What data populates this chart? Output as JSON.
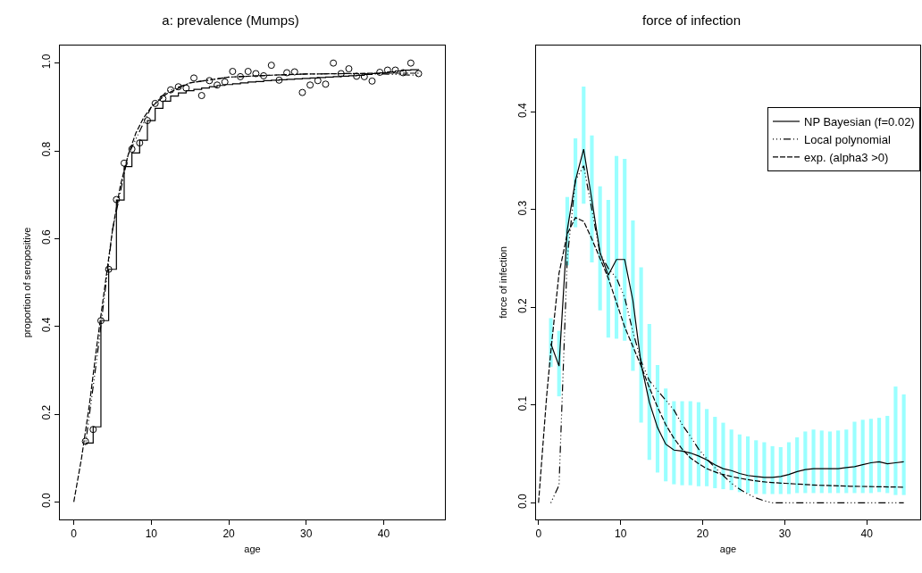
{
  "chart_data": [
    {
      "type": "scatter",
      "title": "a: prevalence (Mumps)",
      "xlabel": "age",
      "ylabel": "proportion of seropositive",
      "x": [
        1.5,
        2.5,
        3.5,
        4.5,
        5.5,
        6.5,
        7.5,
        8.5,
        9.5,
        10.5,
        11.5,
        12.5,
        13.5,
        14.5,
        15.5,
        16.5,
        17.5,
        18.5,
        19.5,
        20.5,
        21.5,
        22.5,
        23.5,
        24.5,
        25.5,
        26.5,
        27.5,
        28.5,
        29.5,
        30.5,
        31.5,
        32.5,
        33.5,
        34.5,
        35.5,
        36.5,
        37.5,
        38.5,
        39.5,
        40.5,
        41.5,
        42.5,
        43.5,
        44.5
      ],
      "series": [
        {
          "marker": "circle",
          "color": "#000000",
          "values": [
            0.138,
            0.165,
            0.413,
            0.53,
            0.689,
            0.772,
            0.804,
            0.818,
            0.869,
            0.908,
            0.919,
            0.939,
            0.946,
            0.943,
            0.966,
            0.926,
            0.96,
            0.95,
            0.957,
            0.981,
            0.969,
            0.981,
            0.976,
            0.971,
            0.995,
            0.961,
            0.978,
            0.98,
            0.933,
            0.95,
            0.96,
            0.952,
            1.0,
            0.976,
            0.987,
            0.97,
            0.969,
            0.959,
            0.979,
            0.984,
            0.984,
            0.978,
            1.0,
            0.976
          ]
        },
        {
          "type": "step",
          "line_style": "solid",
          "color": "#000000",
          "values": [
            0.134,
            0.171,
            0.413,
            0.53,
            0.688,
            0.764,
            0.795,
            0.824,
            0.869,
            0.897,
            0.913,
            0.925,
            0.932,
            0.937,
            0.94,
            0.943,
            0.946,
            0.949,
            0.951,
            0.953,
            0.955,
            0.957,
            0.958,
            0.96,
            0.961,
            0.962,
            0.963,
            0.964,
            0.965,
            0.966,
            0.967,
            0.968,
            0.969,
            0.97,
            0.971,
            0.972,
            0.974,
            0.976,
            0.978,
            0.98,
            0.982,
            0.984,
            0.985,
            0.986
          ]
        },
        {
          "type": "line",
          "line_style": "dotted",
          "color": "#000000",
          "x": [
            1.5,
            3,
            5,
            7,
            10,
            12,
            15,
            20,
            25,
            30,
            35,
            40,
            44.5
          ],
          "values": [
            0.13,
            0.33,
            0.62,
            0.79,
            0.9,
            0.935,
            0.955,
            0.968,
            0.972,
            0.975,
            0.976,
            0.975,
            0.972
          ]
        },
        {
          "type": "line",
          "line_style": "dashed",
          "color": "#000000",
          "x": [
            0,
            1,
            2,
            3,
            4,
            5,
            6,
            7,
            8,
            9,
            10,
            12,
            15,
            20,
            25,
            30,
            35,
            40,
            44.5
          ],
          "values": [
            0,
            0.1,
            0.22,
            0.36,
            0.49,
            0.62,
            0.72,
            0.79,
            0.84,
            0.875,
            0.9,
            0.93,
            0.955,
            0.968,
            0.972,
            0.975,
            0.976,
            0.977,
            0.977
          ]
        }
      ],
      "xlim": [
        -1.8,
        47.9
      ],
      "ylim": [
        -0.04,
        1.04
      ],
      "xticks": [
        0,
        10,
        20,
        30,
        40
      ],
      "yticks": [
        {
          "value": 0,
          "label": "0.0"
        },
        {
          "value": 0.2,
          "label": "0.2"
        },
        {
          "value": 0.4,
          "label": "0.4"
        },
        {
          "value": 0.6,
          "label": "0.6"
        },
        {
          "value": 0.8,
          "label": "0.8"
        },
        {
          "value": 1,
          "label": "1.0"
        }
      ]
    },
    {
      "type": "line",
      "title": "force of infection",
      "xlabel": "age",
      "ylabel": "force of infection",
      "legend": "top right",
      "x": [
        1.5,
        2.5,
        3.5,
        4.5,
        5.5,
        6.5,
        7.5,
        8.5,
        9.5,
        10.5,
        11.5,
        12.5,
        13.5,
        14.5,
        15.5,
        16.5,
        17.5,
        18.5,
        19.5,
        20.5,
        21.5,
        22.5,
        23.5,
        24.5,
        25.5,
        26.5,
        27.5,
        28.5,
        29.5,
        30.5,
        31.5,
        32.5,
        33.5,
        34.5,
        35.5,
        36.5,
        37.5,
        38.5,
        39.5,
        40.5,
        41.5,
        42.5,
        43.5,
        44.5
      ],
      "series": [
        {
          "type": "bar",
          "color": "#99ffff",
          "base": [
            0.139,
            0.109,
            0.243,
            0.282,
            0.306,
            0.246,
            0.197,
            0.169,
            0.168,
            0.166,
            0.135,
            0.082,
            0.044,
            0.031,
            0.022,
            0.019,
            0.018,
            0.018,
            0.017,
            0.017,
            0.015,
            0.014,
            0.013,
            0.011,
            0.01,
            0.009,
            0.009,
            0.009,
            0.009,
            0.009,
            0.01,
            0.01,
            0.01,
            0.01,
            0.01,
            0.01,
            0.01,
            0.01,
            0.01,
            0.01,
            0.011,
            0.01,
            0.008,
            0.008
          ],
          "values": [
            0.05,
            0.067,
            0.07,
            0.091,
            0.12,
            0.13,
            0.127,
            0.141,
            0.187,
            0.186,
            0.154,
            0.159,
            0.139,
            0.11,
            0.095,
            0.085,
            0.086,
            0.086,
            0.086,
            0.079,
            0.073,
            0.068,
            0.062,
            0.059,
            0.058,
            0.055,
            0.053,
            0.049,
            0.048,
            0.053,
            0.057,
            0.063,
            0.065,
            0.064,
            0.063,
            0.064,
            0.065,
            0.073,
            0.075,
            0.076,
            0.076,
            0.079,
            0.111,
            0.103
          ]
        },
        {
          "name": "NP Bayesian (f=0.02)",
          "line_style": "solid",
          "color": "#000000",
          "values": [
            0.163,
            0.14,
            0.279,
            0.33,
            0.362,
            0.31,
            0.256,
            0.233,
            0.249,
            0.249,
            0.207,
            0.142,
            0.103,
            0.077,
            0.06,
            0.054,
            0.053,
            0.051,
            0.048,
            0.044,
            0.039,
            0.035,
            0.033,
            0.03,
            0.028,
            0.027,
            0.026,
            0.026,
            0.027,
            0.029,
            0.032,
            0.034,
            0.035,
            0.035,
            0.035,
            0.035,
            0.036,
            0.037,
            0.039,
            0.041,
            0.042,
            0.04,
            0.041,
            0.042
          ]
        },
        {
          "name": "Local polynomial",
          "line_style": "dotted",
          "color": "#000000",
          "values": [
            0,
            0.018,
            0.25,
            0.33,
            0.345,
            0.3,
            0.255,
            0.24,
            0.23,
            0.21,
            0.175,
            0.145,
            0.125,
            0.115,
            0.105,
            0.095,
            0.08,
            0.068,
            0.055,
            0.045,
            0.036,
            0.028,
            0.02,
            0.014,
            0.009,
            0.005,
            0.002,
            0,
            0,
            0,
            0,
            0,
            0,
            0,
            0,
            0,
            0,
            0,
            0,
            0,
            0,
            0,
            0,
            0
          ]
        },
        {
          "name": "exp. (alpha3 >0)",
          "line_style": "dashed",
          "color": "#000000",
          "x": [
            0,
            1,
            1.5,
            2.5,
            3.5,
            4.5,
            5.5,
            6.5,
            7.5,
            8.5,
            9.5,
            10.5,
            11.5,
            12.5,
            13.5,
            14.5,
            15.5,
            16.5,
            17.5,
            18.5,
            19.5,
            20.5,
            22,
            24,
            26,
            28,
            30,
            34,
            38,
            44.5
          ],
          "values": [
            0,
            0.11,
            0.155,
            0.235,
            0.275,
            0.292,
            0.288,
            0.27,
            0.25,
            0.23,
            0.205,
            0.18,
            0.16,
            0.14,
            0.118,
            0.098,
            0.08,
            0.066,
            0.055,
            0.046,
            0.04,
            0.035,
            0.03,
            0.026,
            0.023,
            0.021,
            0.02,
            0.018,
            0.017,
            0.016
          ]
        }
      ],
      "xlim": [
        -0.3,
        46.5
      ],
      "ylim": [
        -0.017,
        0.468
      ],
      "xticks": [
        0,
        10,
        20,
        30,
        40
      ],
      "yticks": [
        {
          "value": 0,
          "label": "0.0"
        },
        {
          "value": 0.1,
          "label": "0.1"
        },
        {
          "value": 0.2,
          "label": "0.2"
        },
        {
          "value": 0.3,
          "label": "0.3"
        },
        {
          "value": 0.4,
          "label": "0.4"
        }
      ]
    }
  ]
}
